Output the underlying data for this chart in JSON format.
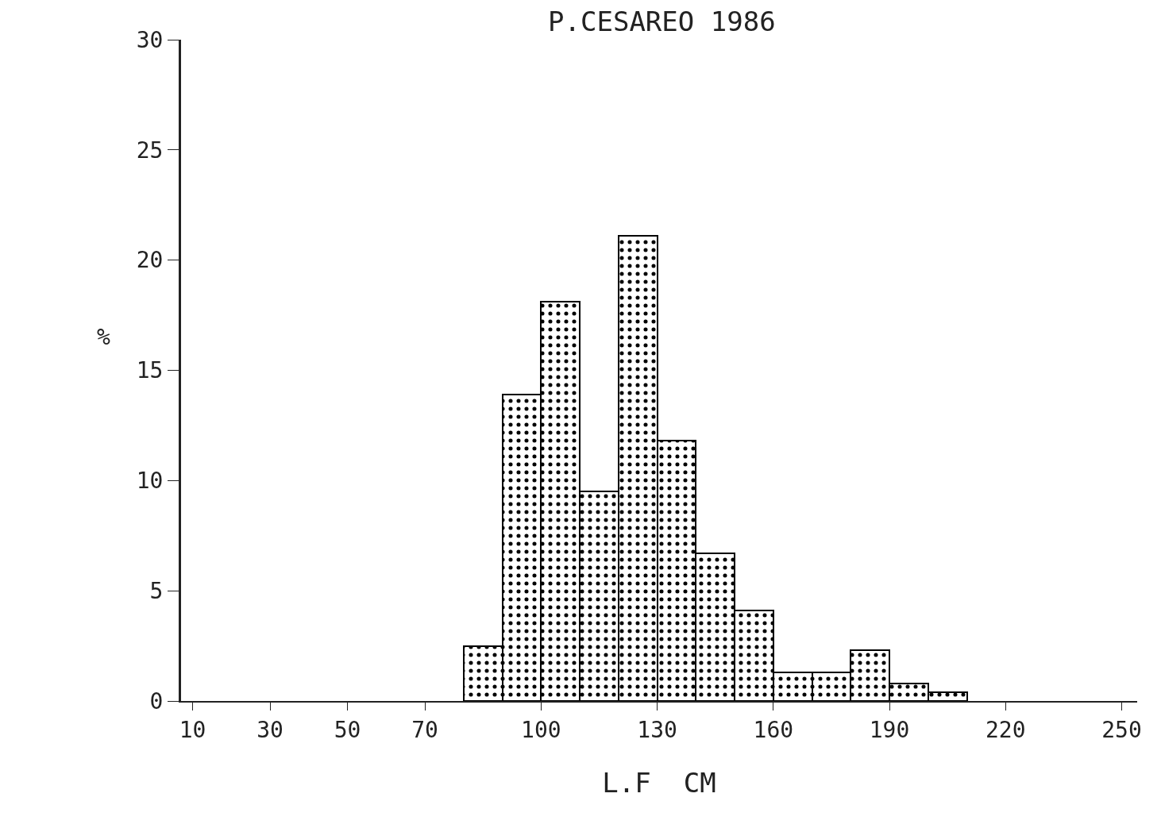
{
  "chart_data": {
    "type": "histogram",
    "title": "P.CESAREO 1986",
    "xlabel": "L.F  CM",
    "ylabel": "%",
    "bins": [
      80,
      90,
      100,
      110,
      120,
      130,
      140,
      150,
      160,
      170,
      180,
      190,
      200,
      210
    ],
    "values": [
      2.5,
      13.9,
      18.1,
      9.5,
      21.1,
      11.8,
      6.7,
      4.1,
      1.3,
      1.3,
      2.3,
      0.8,
      0.4
    ],
    "color": "#000000",
    "xlim": [
      7,
      254
    ],
    "xticks": [
      10,
      30,
      50,
      70,
      100,
      130,
      160,
      190,
      220,
      250
    ],
    "ylim": [
      0,
      30
    ],
    "yticks": [
      0,
      5,
      10,
      15,
      20,
      25,
      30
    ],
    "grid": false
  }
}
